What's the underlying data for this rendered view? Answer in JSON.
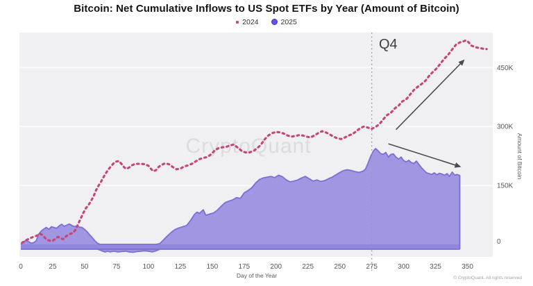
{
  "watermark": "CryptoQuant",
  "footer": "© CryptoQuant. All rights reserved",
  "colors": {
    "plot_bg": "#f0f0f2",
    "grid": "#fafafb",
    "series_2024": "#c6447a",
    "series_2025_fill": "#a096e2",
    "series_2025_band": "#9188dd",
    "series_2025_stroke": "#7a6ed7",
    "legend_2025_fill": "#6354de",
    "legend_2025_border": "#4136c9",
    "q4_line": "#9a9aa2",
    "annotation_arrow": "#4c4c50"
  },
  "chart_data": {
    "type": "line+area",
    "title": "Bitcoin: Net Cumulative Inflows to US Spot ETFs by Year (Amount of Bitcoin)",
    "xlabel": "Day of the Year",
    "ylabel": "Amount of Bitcoin",
    "unit": "BTC (values in thousands)",
    "x_range": [
      0,
      366
    ],
    "y_range": [
      -15,
      540
    ],
    "grid": "horizontal only",
    "legend_position": "top center",
    "x_ticks": [
      0,
      25,
      50,
      75,
      100,
      125,
      150,
      175,
      200,
      225,
      250,
      275,
      300,
      325,
      350
    ],
    "y_ticks": [
      {
        "value": 0,
        "label": "0"
      },
      {
        "value": 150,
        "label": "150K"
      },
      {
        "value": 300,
        "label": "300K"
      },
      {
        "value": 450,
        "label": "450K"
      }
    ],
    "annotations": {
      "q4_label": "Q4",
      "q4_line_day": 275,
      "arrows": [
        {
          "direction": "up",
          "from": [
            294,
            292
          ],
          "to": [
            347,
            468
          ]
        },
        {
          "direction": "down",
          "from": [
            288,
            256
          ],
          "to": [
            344,
            198
          ]
        }
      ]
    },
    "series": [
      {
        "name": "2024",
        "type": "dotted-line",
        "color": "#c6447a",
        "data": [
          [
            1,
            4
          ],
          [
            3,
            8
          ],
          [
            5,
            12
          ],
          [
            7,
            15
          ],
          [
            9,
            18
          ],
          [
            11,
            20
          ],
          [
            13,
            23
          ],
          [
            15,
            27
          ],
          [
            17,
            24
          ],
          [
            19,
            16
          ],
          [
            21,
            11
          ],
          [
            23,
            9
          ],
          [
            25,
            9
          ],
          [
            27,
            14
          ],
          [
            29,
            19
          ],
          [
            31,
            16
          ],
          [
            33,
            13
          ],
          [
            35,
            19
          ],
          [
            37,
            24
          ],
          [
            39,
            27
          ],
          [
            41,
            29
          ],
          [
            43,
            38
          ],
          [
            45,
            52
          ],
          [
            47,
            66
          ],
          [
            49,
            80
          ],
          [
            51,
            92
          ],
          [
            53,
            100
          ],
          [
            55,
            110
          ],
          [
            57,
            122
          ],
          [
            59,
            138
          ],
          [
            61,
            150
          ],
          [
            63,
            160
          ],
          [
            65,
            172
          ],
          [
            67,
            183
          ],
          [
            69,
            192
          ],
          [
            71,
            200
          ],
          [
            73,
            207
          ],
          [
            75,
            211
          ],
          [
            77,
            212
          ],
          [
            79,
            204
          ],
          [
            81,
            196
          ],
          [
            83,
            192
          ],
          [
            85,
            196
          ],
          [
            87,
            201
          ],
          [
            89,
            204
          ],
          [
            91,
            205
          ],
          [
            94,
            205
          ],
          [
            97,
            204
          ],
          [
            100,
            200
          ],
          [
            102,
            192
          ],
          [
            104,
            186
          ],
          [
            106,
            189
          ],
          [
            108,
            197
          ],
          [
            110,
            202
          ],
          [
            113,
            206
          ],
          [
            116,
            204
          ],
          [
            119,
            197
          ],
          [
            122,
            191
          ],
          [
            125,
            193
          ],
          [
            128,
            198
          ],
          [
            131,
            201
          ],
          [
            134,
            205
          ],
          [
            137,
            211
          ],
          [
            140,
            217
          ],
          [
            143,
            220
          ],
          [
            146,
            222
          ],
          [
            149,
            229
          ],
          [
            152,
            239
          ],
          [
            155,
            245
          ],
          [
            158,
            247
          ],
          [
            161,
            248
          ],
          [
            164,
            252
          ],
          [
            167,
            254
          ],
          [
            170,
            246
          ],
          [
            173,
            238
          ],
          [
            176,
            234
          ],
          [
            179,
            234
          ],
          [
            182,
            237
          ],
          [
            185,
            244
          ],
          [
            188,
            253
          ],
          [
            191,
            267
          ],
          [
            194,
            277
          ],
          [
            197,
            283
          ],
          [
            200,
            286
          ],
          [
            203,
            285
          ],
          [
            206,
            282
          ],
          [
            209,
            277
          ],
          [
            212,
            274
          ],
          [
            215,
            276
          ],
          [
            218,
            278
          ],
          [
            221,
            277
          ],
          [
            224,
            274
          ],
          [
            227,
            272
          ],
          [
            230,
            277
          ],
          [
            233,
            283
          ],
          [
            236,
            288
          ],
          [
            239,
            285
          ],
          [
            242,
            280
          ],
          [
            245,
            274
          ],
          [
            248,
            270
          ],
          [
            251,
            268
          ],
          [
            254,
            272
          ],
          [
            257,
            277
          ],
          [
            260,
            281
          ],
          [
            263,
            288
          ],
          [
            266,
            296
          ],
          [
            269,
            300
          ],
          [
            272,
            297
          ],
          [
            275,
            294
          ],
          [
            278,
            299
          ],
          [
            281,
            306
          ],
          [
            284,
            318
          ],
          [
            287,
            329
          ],
          [
            290,
            335
          ],
          [
            293,
            346
          ],
          [
            296,
            353
          ],
          [
            299,
            364
          ],
          [
            302,
            369
          ],
          [
            305,
            381
          ],
          [
            308,
            393
          ],
          [
            311,
            401
          ],
          [
            314,
            408
          ],
          [
            317,
            416
          ],
          [
            320,
            429
          ],
          [
            323,
            439
          ],
          [
            326,
            448
          ],
          [
            329,
            461
          ],
          [
            332,
            473
          ],
          [
            335,
            483
          ],
          [
            338,
            496
          ],
          [
            341,
            508
          ],
          [
            344,
            514
          ],
          [
            347,
            517
          ],
          [
            349,
            519
          ],
          [
            351,
            514
          ],
          [
            353,
            506
          ],
          [
            356,
            502
          ],
          [
            359,
            500
          ],
          [
            362,
            498
          ],
          [
            365,
            497
          ]
        ]
      },
      {
        "name": "2025",
        "type": "area",
        "fill": "#a096e2",
        "stroke": "#7a6ed7",
        "data": [
          [
            0,
            0
          ],
          [
            2,
            5
          ],
          [
            4,
            11
          ],
          [
            6,
            7
          ],
          [
            8,
            3
          ],
          [
            10,
            4
          ],
          [
            12,
            9
          ],
          [
            14,
            26
          ],
          [
            16,
            34
          ],
          [
            18,
            39
          ],
          [
            20,
            43
          ],
          [
            22,
            38
          ],
          [
            24,
            45
          ],
          [
            26,
            43
          ],
          [
            28,
            41
          ],
          [
            30,
            47
          ],
          [
            32,
            51
          ],
          [
            34,
            46
          ],
          [
            36,
            49
          ],
          [
            38,
            52
          ],
          [
            40,
            48
          ],
          [
            42,
            45
          ],
          [
            44,
            47
          ],
          [
            46,
            44
          ],
          [
            48,
            43
          ],
          [
            50,
            38
          ],
          [
            52,
            32
          ],
          [
            54,
            24
          ],
          [
            56,
            17
          ],
          [
            58,
            9
          ],
          [
            60,
            3
          ],
          [
            62,
            -2
          ],
          [
            64,
            -5
          ],
          [
            66,
            -7
          ],
          [
            68,
            -5
          ],
          [
            70,
            -7
          ],
          [
            73,
            -5
          ],
          [
            76,
            -7
          ],
          [
            79,
            -6
          ],
          [
            82,
            -5
          ],
          [
            85,
            -7
          ],
          [
            88,
            -8
          ],
          [
            91,
            -6
          ],
          [
            94,
            -5
          ],
          [
            97,
            -4
          ],
          [
            100,
            -5
          ],
          [
            103,
            -7
          ],
          [
            106,
            -4
          ],
          [
            109,
            2
          ],
          [
            112,
            12
          ],
          [
            115,
            22
          ],
          [
            118,
            31
          ],
          [
            121,
            38
          ],
          [
            124,
            42
          ],
          [
            127,
            45
          ],
          [
            130,
            48
          ],
          [
            133,
            61
          ],
          [
            136,
            76
          ],
          [
            138,
            82
          ],
          [
            140,
            79
          ],
          [
            143,
            88
          ],
          [
            145,
            74
          ],
          [
            148,
            77
          ],
          [
            151,
            80
          ],
          [
            154,
            87
          ],
          [
            157,
            97
          ],
          [
            160,
            106
          ],
          [
            163,
            110
          ],
          [
            166,
            113
          ],
          [
            169,
            119
          ],
          [
            172,
            117
          ],
          [
            175,
            131
          ],
          [
            178,
            137
          ],
          [
            181,
            144
          ],
          [
            184,
            156
          ],
          [
            187,
            165
          ],
          [
            190,
            169
          ],
          [
            193,
            171
          ],
          [
            196,
            173
          ],
          [
            199,
            170
          ],
          [
            202,
            176
          ],
          [
            205,
            172
          ],
          [
            208,
            164
          ],
          [
            211,
            159
          ],
          [
            214,
            161
          ],
          [
            217,
            164
          ],
          [
            220,
            169
          ],
          [
            223,
            173
          ],
          [
            226,
            167
          ],
          [
            229,
            161
          ],
          [
            232,
            164
          ],
          [
            235,
            160
          ],
          [
            238,
            162
          ],
          [
            241,
            167
          ],
          [
            244,
            171
          ],
          [
            247,
            177
          ],
          [
            250,
            183
          ],
          [
            253,
            188
          ],
          [
            256,
            190
          ],
          [
            259,
            188
          ],
          [
            262,
            185
          ],
          [
            265,
            183
          ],
          [
            268,
            186
          ],
          [
            270,
            191
          ],
          [
            272,
            206
          ],
          [
            274,
            223
          ],
          [
            276,
            236
          ],
          [
            278,
            244
          ],
          [
            280,
            238
          ],
          [
            282,
            231
          ],
          [
            284,
            229
          ],
          [
            286,
            234
          ],
          [
            288,
            222
          ],
          [
            290,
            229
          ],
          [
            292,
            230
          ],
          [
            294,
            222
          ],
          [
            296,
            217
          ],
          [
            298,
            222
          ],
          [
            300,
            213
          ],
          [
            302,
            210
          ],
          [
            304,
            214
          ],
          [
            306,
            208
          ],
          [
            308,
            206
          ],
          [
            310,
            212
          ],
          [
            312,
            203
          ],
          [
            314,
            195
          ],
          [
            316,
            188
          ],
          [
            318,
            182
          ],
          [
            320,
            180
          ],
          [
            322,
            178
          ],
          [
            324,
            182
          ],
          [
            326,
            177
          ],
          [
            328,
            181
          ],
          [
            330,
            179
          ],
          [
            332,
            176
          ],
          [
            334,
            180
          ],
          [
            336,
            173
          ],
          [
            338,
            184
          ],
          [
            340,
            176
          ],
          [
            342,
            178
          ],
          [
            344,
            175
          ]
        ]
      }
    ]
  }
}
